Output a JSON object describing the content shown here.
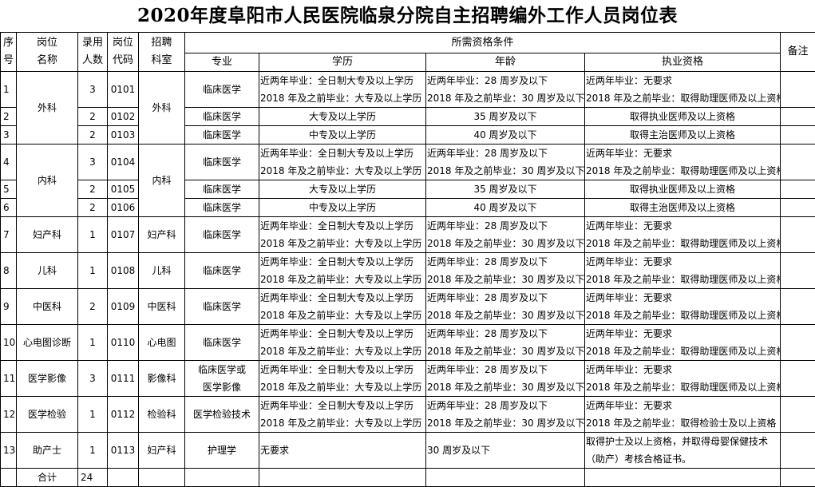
{
  "title": "2020年度阜阳市人民医院临泉分院自主招聘编外工作人员岗位表",
  "headers": {
    "no": [
      "序",
      "号"
    ],
    "name": [
      "岗位",
      "名称"
    ],
    "count": [
      "录用",
      "人数"
    ],
    "code": [
      "岗位",
      "代码"
    ],
    "dept": [
      "招聘",
      "科室"
    ],
    "qualifications": "所需资格条件",
    "major": "专业",
    "education": "学历",
    "age": "年龄",
    "license": "执业资格",
    "remark": "备注"
  },
  "groups": [
    {
      "name": "外科",
      "dept": "外科",
      "rows": [
        {
          "no": "1",
          "count": "3",
          "code": "0101",
          "major": [
            "临床医学"
          ],
          "education": [
            "近两年毕业：全日制大专及以上学历",
            "2018 年及之前毕业：大专及以上学历"
          ],
          "age": [
            "近两年毕业：28 周岁及以下",
            "2018 年及之前毕业：30 周岁及以下"
          ],
          "license": [
            "近两年毕业：无要求",
            "2018 年及之前毕业：取得助理医师及以上资格"
          ],
          "remark": ""
        },
        {
          "no": "2",
          "count": "2",
          "code": "0102",
          "major": [
            "临床医学"
          ],
          "education": [
            "大专及以上学历"
          ],
          "age": [
            "35 周岁及以下"
          ],
          "license": [
            "取得执业医师及以上资格"
          ],
          "remark": ""
        },
        {
          "no": "3",
          "count": "2",
          "code": "0103",
          "major": [
            "临床医学"
          ],
          "education": [
            "中专及以上学历"
          ],
          "age": [
            "40 周岁及以下"
          ],
          "license": [
            "取得主治医师及以上资格"
          ],
          "remark": ""
        }
      ]
    },
    {
      "name": "内科",
      "dept": "内科",
      "rows": [
        {
          "no": "4",
          "count": "3",
          "code": "0104",
          "major": [
            "临床医学"
          ],
          "education": [
            "近两年毕业：全日制大专及以上学历",
            "2018 年及之前毕业：大专及以上学历"
          ],
          "age": [
            "近两年毕业：28 周岁及以下",
            "2018 年及之前毕业：30 周岁及以下"
          ],
          "license": [
            "近两年毕业：无要求",
            "2018 年及之前毕业：取得助理医师及以上资格"
          ],
          "remark": ""
        },
        {
          "no": "5",
          "count": "2",
          "code": "0105",
          "major": [
            "临床医学"
          ],
          "education": [
            "大专及以上学历"
          ],
          "age": [
            "35 周岁及以下"
          ],
          "license": [
            "取得执业医师及以上资格"
          ],
          "remark": ""
        },
        {
          "no": "6",
          "count": "2",
          "code": "0106",
          "major": [
            "临床医学"
          ],
          "education": [
            "中专及以上学历"
          ],
          "age": [
            "40 周岁及以下"
          ],
          "license": [
            "取得主治医师及以上资格"
          ],
          "remark": ""
        }
      ]
    },
    {
      "name": "妇产科",
      "dept": "妇产科",
      "rows": [
        {
          "no": "7",
          "count": "1",
          "code": "0107",
          "major": [
            "临床医学"
          ],
          "education": [
            "近两年毕业：全日制大专及以上学历",
            "2018 年及之前毕业：大专及以上学历"
          ],
          "age": [
            "近两年毕业：28 周岁及以下",
            "2018 年及之前毕业：30 周岁及以下"
          ],
          "license": [
            "近两年毕业：无要求",
            "2018 年及之前毕业：取得助理医师及以上资格"
          ],
          "remark": ""
        }
      ]
    },
    {
      "name": "儿科",
      "dept": "儿科",
      "rows": [
        {
          "no": "8",
          "count": "1",
          "code": "0108",
          "major": [
            "临床医学"
          ],
          "education": [
            "近两年毕业：全日制大专及以上学历",
            "2018 年及之前毕业：大专及以上学历"
          ],
          "age": [
            "近两年毕业：28 周岁及以下",
            "2018 年及之前毕业：30 周岁及以下"
          ],
          "license": [
            "近两年毕业：无要求",
            "2018 年及之前毕业：取得助理医师及以上资格"
          ],
          "remark": ""
        }
      ]
    },
    {
      "name": "中医科",
      "dept": "中医科",
      "rows": [
        {
          "no": "9",
          "count": "2",
          "code": "0109",
          "major": [
            "临床医学"
          ],
          "education": [
            "近两年毕业：全日制大专及以上学历",
            "2018 年及之前毕业：大专及以上学历"
          ],
          "age": [
            "近两年毕业：28 周岁及以下",
            "2018 年及之前毕业：30 周岁及以下"
          ],
          "license": [
            "近两年毕业：无要求",
            "2018 年及之前毕业：取得助理医师及以上资格"
          ],
          "remark": ""
        }
      ]
    },
    {
      "name": "心电图诊断",
      "dept": "心电图",
      "rows": [
        {
          "no": "10",
          "count": "1",
          "code": "0110",
          "major": [
            "临床医学"
          ],
          "education": [
            "近两年毕业：全日制大专及以上学历",
            "2018 年及之前毕业：大专及以上学历"
          ],
          "age": [
            "近两年毕业：28 周岁及以下",
            "2018 年及之前毕业：30 周岁及以下"
          ],
          "license": [
            "近两年毕业：无要求",
            "2018 年及之前毕业：取得助理医师及以上资格"
          ],
          "remark": ""
        }
      ]
    },
    {
      "name": "医学影像",
      "dept": "影像科",
      "rows": [
        {
          "no": "11",
          "count": "3",
          "code": "0111",
          "major": [
            "临床医学或",
            "医学影像"
          ],
          "education": [
            "近两年毕业：全日制大专及以上学历",
            "2018 年及之前毕业：大专及以上学历"
          ],
          "age": [
            "近两年毕业：28 周岁及以下",
            "2018 年及之前毕业：30 周岁及以下"
          ],
          "license": [
            "近两年毕业：无要求",
            "2018 年及之前毕业：取得助理医师及以上资格"
          ],
          "remark": ""
        }
      ]
    },
    {
      "name": "医学检验",
      "dept": "检验科",
      "rows": [
        {
          "no": "12",
          "count": "1",
          "code": "0112",
          "major": [
            "医学检验技术"
          ],
          "education": [
            "近两年毕业：全日制大专及以上学历",
            "2018 年及之前毕业：大专及以上学历"
          ],
          "age": [
            "近两年毕业：28 周岁及以下",
            "2018 年及之前毕业：30 周岁及以下"
          ],
          "license": [
            "近两年毕业：无要求",
            "2018 年及之前毕业：取得检验士及以上资格"
          ],
          "remark": ""
        }
      ]
    },
    {
      "name": "助产士",
      "dept": "妇产科",
      "rows": [
        {
          "no": "13",
          "count": "1",
          "code": "0113",
          "major": [
            "护理学"
          ],
          "education": [
            "无要求"
          ],
          "age": [
            "30 周岁及以下"
          ],
          "license": [
            "取得护士及以上资格，并取得母婴保健技术（助产）考核合格证书。"
          ],
          "remark": ""
        }
      ]
    }
  ],
  "total": {
    "label": "合计",
    "count": "24"
  }
}
